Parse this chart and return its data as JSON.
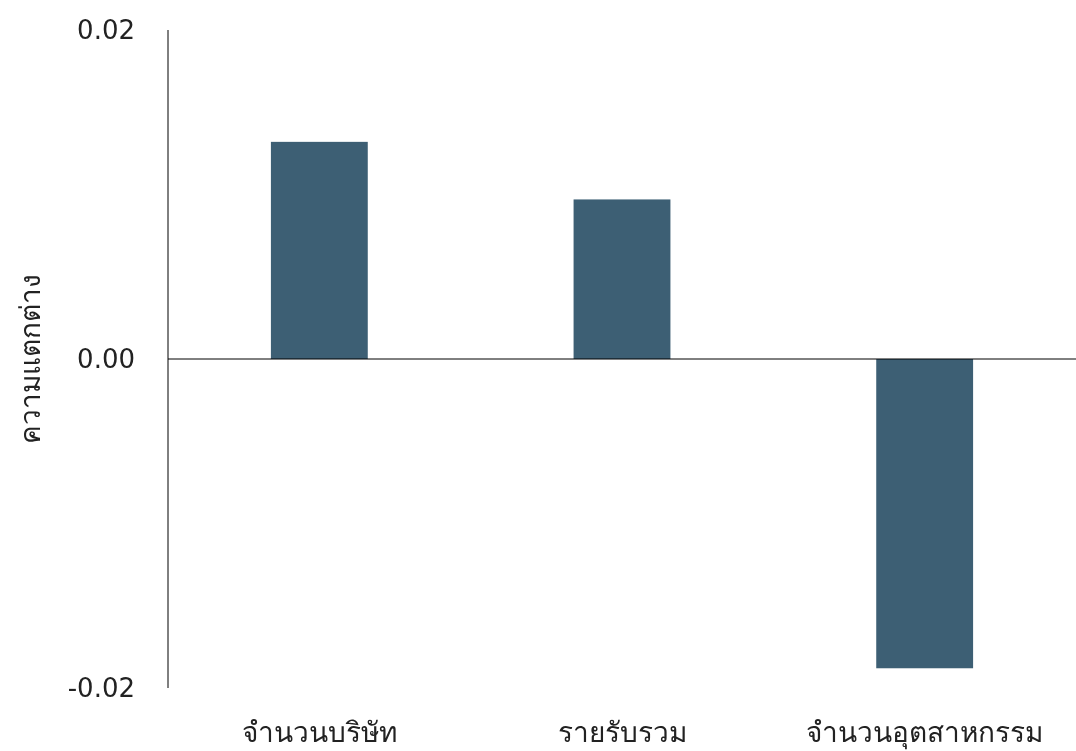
{
  "chart_data": {
    "type": "bar",
    "ylabel": "ความแตกต่าง",
    "categories": [
      "จำนวนบริษัท",
      "รายรับรวม",
      "จำนวนอุตสาหกรรม"
    ],
    "values": [
      0.0132,
      0.0097,
      -0.0188
    ],
    "color": "#3d5f74",
    "ylim": [
      -0.02,
      0.02
    ],
    "yticks": [
      {
        "value": -0.02,
        "label": "-0.02"
      },
      {
        "value": 0,
        "label": "0.00"
      },
      {
        "value": 0.02,
        "label": "0.02"
      }
    ]
  }
}
